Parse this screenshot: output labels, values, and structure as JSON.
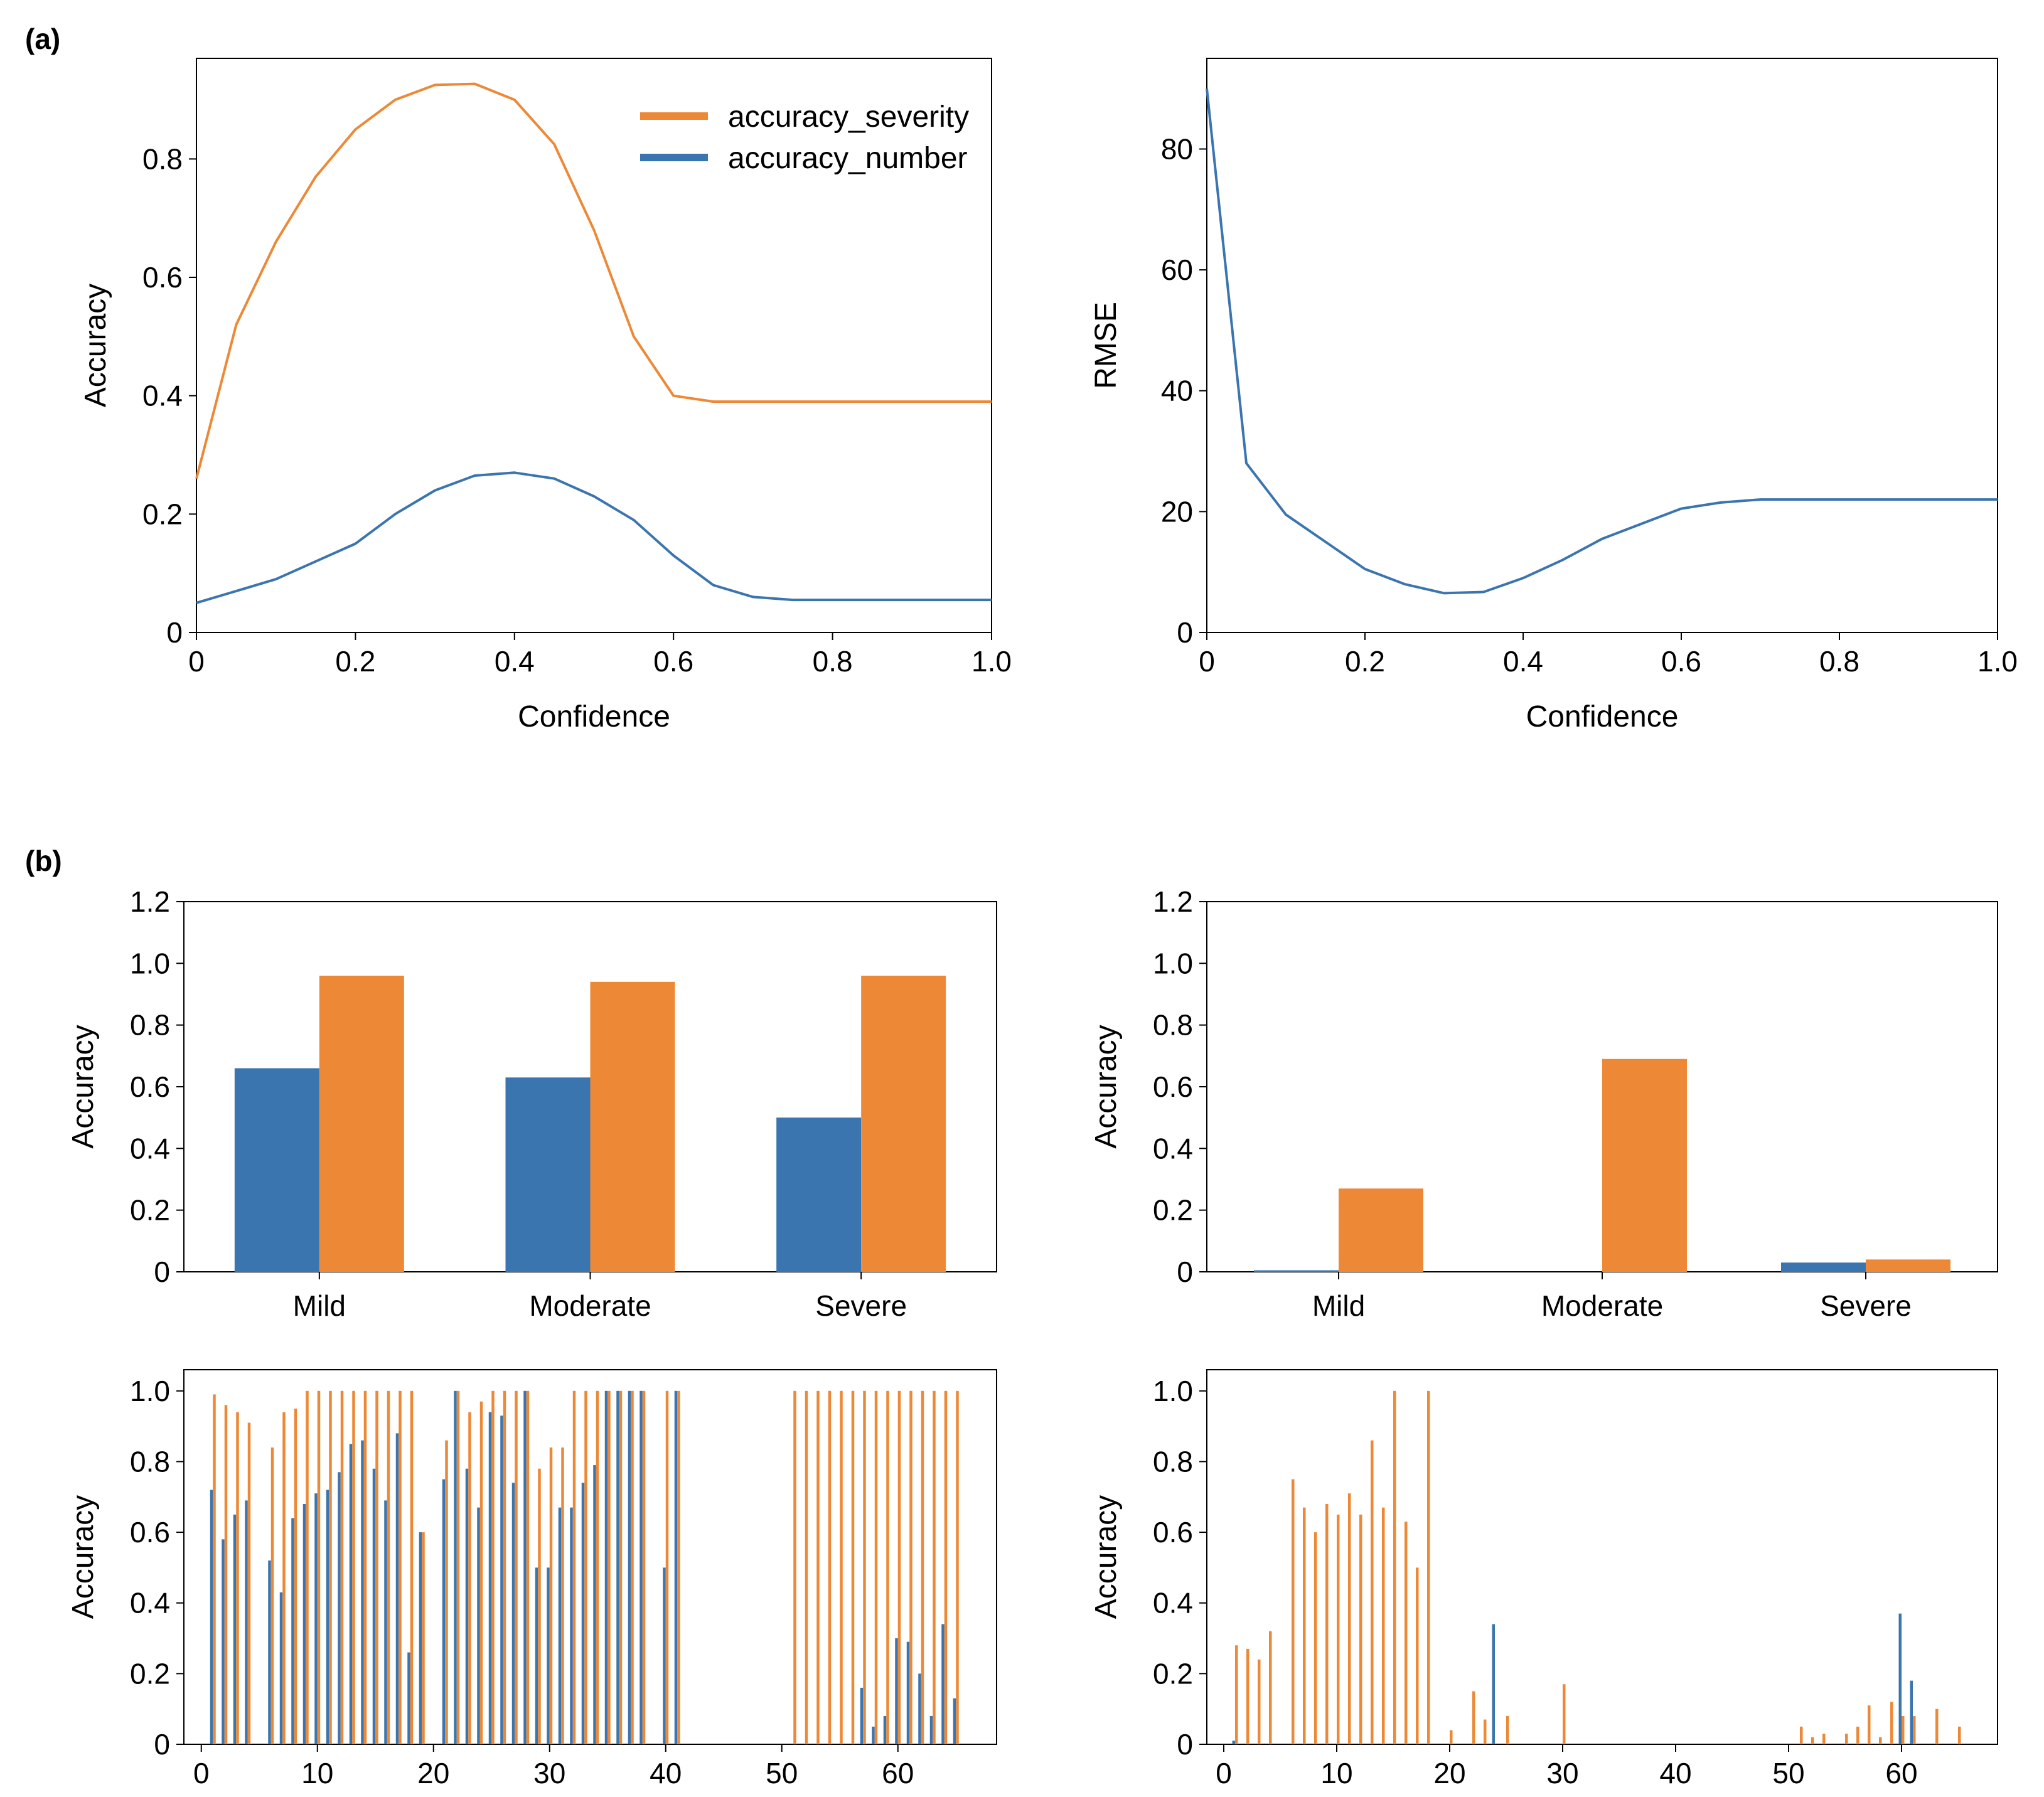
{
  "colors": {
    "severity": "#ED8936",
    "number": "#3B75AF"
  },
  "panel_labels": {
    "a": "(a)",
    "b": "(b)"
  },
  "chart_data": [
    {
      "id": "a_left",
      "type": "line",
      "xlabel": "Confidence",
      "ylabel": "Accuracy",
      "xlim": [
        0,
        1.0
      ],
      "ylim": [
        0,
        0.97
      ],
      "xticks": [
        0,
        0.2,
        0.4,
        0.6,
        0.8,
        1.0
      ],
      "xtick_labels": [
        "0",
        "0.2",
        "0.4",
        "0.6",
        "0.8",
        "1.0"
      ],
      "yticks": [
        0,
        0.2,
        0.4,
        0.6,
        0.8
      ],
      "ytick_labels": [
        "0",
        "0.2",
        "0.4",
        "0.6",
        "0.8"
      ],
      "legend": "top-right",
      "x": [
        0,
        0.05,
        0.1,
        0.15,
        0.2,
        0.25,
        0.3,
        0.35,
        0.4,
        0.45,
        0.5,
        0.55,
        0.6,
        0.65,
        0.7,
        0.75,
        0.8,
        0.85,
        0.9,
        0.95,
        1.0
      ],
      "series": [
        {
          "name": "accuracy_severity",
          "color_key": "severity",
          "values": [
            0.26,
            0.52,
            0.66,
            0.77,
            0.85,
            0.9,
            0.925,
            0.927,
            0.9,
            0.825,
            0.68,
            0.5,
            0.4,
            0.39,
            0.39,
            0.39,
            0.39,
            0.39,
            0.39,
            0.39,
            0.39
          ]
        },
        {
          "name": "accuracy_number",
          "color_key": "number",
          "values": [
            0.05,
            0.07,
            0.09,
            0.12,
            0.15,
            0.2,
            0.24,
            0.265,
            0.27,
            0.26,
            0.23,
            0.19,
            0.13,
            0.08,
            0.06,
            0.055,
            0.055,
            0.055,
            0.055,
            0.055,
            0.055
          ]
        }
      ]
    },
    {
      "id": "a_right",
      "type": "line",
      "xlabel": "Confidence",
      "ylabel": "RMSE",
      "xlim": [
        0,
        1.0
      ],
      "ylim": [
        0,
        95
      ],
      "xticks": [
        0,
        0.2,
        0.4,
        0.6,
        0.8,
        1.0
      ],
      "xtick_labels": [
        "0",
        "0.2",
        "0.4",
        "0.6",
        "0.8",
        "1.0"
      ],
      "yticks": [
        0,
        20,
        40,
        60,
        80
      ],
      "ytick_labels": [
        "0",
        "20",
        "40",
        "60",
        "80"
      ],
      "x": [
        0,
        0.05,
        0.1,
        0.15,
        0.2,
        0.25,
        0.3,
        0.35,
        0.4,
        0.45,
        0.5,
        0.55,
        0.6,
        0.65,
        0.7,
        0.75,
        0.8,
        0.85,
        0.9,
        0.95,
        1.0
      ],
      "series": [
        {
          "name": "RMSE",
          "color_key": "number",
          "values": [
            90,
            28,
            19.5,
            15,
            10.5,
            8,
            6.5,
            6.7,
            9,
            12,
            15.5,
            18,
            20.5,
            21.5,
            22,
            22,
            22,
            22,
            22,
            22,
            22
          ]
        }
      ]
    },
    {
      "id": "b_top_left",
      "type": "bar",
      "ylabel": "Accuracy",
      "ylim": [
        0,
        1.2
      ],
      "yticks": [
        0,
        0.2,
        0.4,
        0.6,
        0.8,
        1.0,
        1.2
      ],
      "ytick_labels": [
        "0",
        "0.2",
        "0.4",
        "0.6",
        "0.8",
        "1.0",
        "1.2"
      ],
      "categories": [
        "Mild",
        "Moderate",
        "Severe"
      ],
      "series": [
        {
          "name": "accuracy_number",
          "color_key": "number",
          "values": [
            0.66,
            0.63,
            0.5
          ]
        },
        {
          "name": "accuracy_severity",
          "color_key": "severity",
          "values": [
            0.96,
            0.94,
            0.96
          ]
        }
      ]
    },
    {
      "id": "b_top_right",
      "type": "bar",
      "ylabel": "Accuracy",
      "ylim": [
        0,
        1.2
      ],
      "yticks": [
        0,
        0.2,
        0.4,
        0.6,
        0.8,
        1.0,
        1.2
      ],
      "ytick_labels": [
        "0",
        "0.2",
        "0.4",
        "0.6",
        "0.8",
        "1.0",
        "1.2"
      ],
      "categories": [
        "Mild",
        "Moderate",
        "Severe"
      ],
      "series": [
        {
          "name": "accuracy_number",
          "color_key": "number",
          "values": [
            0.005,
            0.0,
            0.03
          ]
        },
        {
          "name": "accuracy_severity",
          "color_key": "severity",
          "values": [
            0.27,
            0.69,
            0.04
          ]
        }
      ]
    },
    {
      "id": "b_bottom_left",
      "type": "bar",
      "ylabel": "Accuracy",
      "xlim": [
        -1.5,
        68.5
      ],
      "ylim": [
        0,
        1.06
      ],
      "xticks": [
        0,
        10,
        20,
        30,
        40,
        50,
        60
      ],
      "xtick_labels": [
        "0",
        "10",
        "20",
        "30",
        "40",
        "50",
        "60"
      ],
      "yticks": [
        0,
        0.2,
        0.4,
        0.6,
        0.8,
        1.0
      ],
      "ytick_labels": [
        "0",
        "0.2",
        "0.4",
        "0.6",
        "0.8",
        "1.0"
      ],
      "x": [
        1,
        2,
        3,
        4,
        5,
        6,
        7,
        8,
        9,
        10,
        11,
        12,
        13,
        14,
        15,
        16,
        17,
        18,
        19,
        20,
        21,
        22,
        23,
        24,
        25,
        26,
        27,
        28,
        29,
        30,
        31,
        32,
        33,
        34,
        35,
        36,
        37,
        38,
        39,
        40,
        41,
        42,
        43,
        44,
        45,
        46,
        47,
        48,
        49,
        50,
        51,
        52,
        53,
        54,
        55,
        56,
        57,
        58,
        59,
        60,
        61,
        62,
        63,
        64,
        65
      ],
      "series": [
        {
          "name": "accuracy_number",
          "color_key": "number",
          "values": [
            0.72,
            0.58,
            0.65,
            0.69,
            0,
            0.52,
            0.43,
            0.64,
            0.68,
            0.71,
            0.72,
            0.77,
            0.85,
            0.86,
            0.78,
            0.69,
            0.88,
            0.26,
            0.6,
            0,
            0.75,
            1.0,
            0.78,
            0.67,
            0.94,
            0.93,
            0.74,
            1.0,
            0.5,
            0.5,
            0.67,
            0.67,
            0.74,
            0.79,
            1.0,
            1.0,
            1.0,
            1.0,
            0,
            0.5,
            1.0,
            0,
            0,
            0,
            0,
            0,
            0,
            0,
            0,
            0,
            0,
            0,
            0,
            0,
            0,
            0,
            0.16,
            0.05,
            0.08,
            0.3,
            0.29,
            0.2,
            0.08,
            0.34,
            0.13
          ]
        },
        {
          "name": "accuracy_severity",
          "color_key": "severity",
          "values": [
            0.99,
            0.96,
            0.94,
            0.91,
            0,
            0.84,
            0.94,
            0.95,
            1.0,
            1.0,
            1.0,
            1.0,
            1.0,
            1.0,
            1.0,
            1.0,
            1.0,
            1.0,
            0.6,
            0,
            0.86,
            1.0,
            0.94,
            0.97,
            1.0,
            1.0,
            1.0,
            1.0,
            0.78,
            0.84,
            0.84,
            1.0,
            1.0,
            1.0,
            1.0,
            1.0,
            1.0,
            1.0,
            0,
            1.0,
            1.0,
            0,
            0,
            0,
            0,
            0,
            0,
            0,
            0,
            0,
            1.0,
            1.0,
            1.0,
            1.0,
            1.0,
            1.0,
            1.0,
            1.0,
            1.0,
            1.0,
            1.0,
            1.0,
            1.0,
            1.0,
            1.0
          ]
        }
      ]
    },
    {
      "id": "b_bottom_right",
      "type": "bar",
      "ylabel": "Accuracy",
      "xlim": [
        -1.5,
        68.5
      ],
      "ylim": [
        0,
        1.06
      ],
      "xticks": [
        0,
        10,
        20,
        30,
        40,
        50,
        60
      ],
      "xtick_labels": [
        "0",
        "10",
        "20",
        "30",
        "40",
        "50",
        "60"
      ],
      "yticks": [
        0,
        0.2,
        0.4,
        0.6,
        0.8,
        1.0
      ],
      "ytick_labels": [
        "0",
        "0.2",
        "0.4",
        "0.6",
        "0.8",
        "1.0"
      ],
      "x": [
        1,
        2,
        3,
        4,
        5,
        6,
        7,
        8,
        9,
        10,
        11,
        12,
        13,
        14,
        15,
        16,
        17,
        18,
        19,
        20,
        21,
        22,
        23,
        24,
        25,
        26,
        27,
        28,
        29,
        30,
        31,
        32,
        33,
        34,
        35,
        36,
        37,
        38,
        39,
        40,
        41,
        42,
        43,
        44,
        45,
        46,
        47,
        48,
        49,
        50,
        51,
        52,
        53,
        54,
        55,
        56,
        57,
        58,
        59,
        60,
        61,
        62,
        63,
        64,
        65
      ],
      "series": [
        {
          "name": "accuracy_number",
          "color_key": "number",
          "values": [
            0.01,
            0,
            0,
            0,
            0,
            0,
            0,
            0,
            0,
            0,
            0,
            0,
            0,
            0,
            0,
            0,
            0,
            0,
            0,
            0,
            0,
            0,
            0,
            0.34,
            0,
            0,
            0,
            0,
            0,
            0,
            0,
            0,
            0,
            0,
            0,
            0,
            0,
            0,
            0,
            0,
            0,
            0,
            0,
            0,
            0,
            0,
            0,
            0,
            0,
            0,
            0,
            0,
            0,
            0,
            0,
            0,
            0,
            0,
            0,
            0.37,
            0.18,
            0,
            0,
            0,
            0
          ]
        },
        {
          "name": "accuracy_severity",
          "color_key": "severity",
          "values": [
            0.28,
            0.27,
            0.24,
            0.32,
            0,
            0.75,
            0.67,
            0.6,
            0.68,
            0.65,
            0.71,
            0.65,
            0.86,
            0.67,
            1.0,
            0.63,
            0.5,
            1.0,
            0,
            0.04,
            0,
            0.15,
            0.07,
            0,
            0.08,
            0,
            0,
            0,
            0,
            0.17,
            0,
            0,
            0,
            0,
            0,
            0,
            0,
            0,
            0,
            0,
            0,
            0,
            0,
            0,
            0,
            0,
            0,
            0,
            0,
            0,
            0.05,
            0.02,
            0.03,
            0,
            0.03,
            0.05,
            0.11,
            0.02,
            0.12,
            0.08,
            0.08,
            0,
            0.1,
            0,
            0.05
          ]
        }
      ]
    }
  ]
}
